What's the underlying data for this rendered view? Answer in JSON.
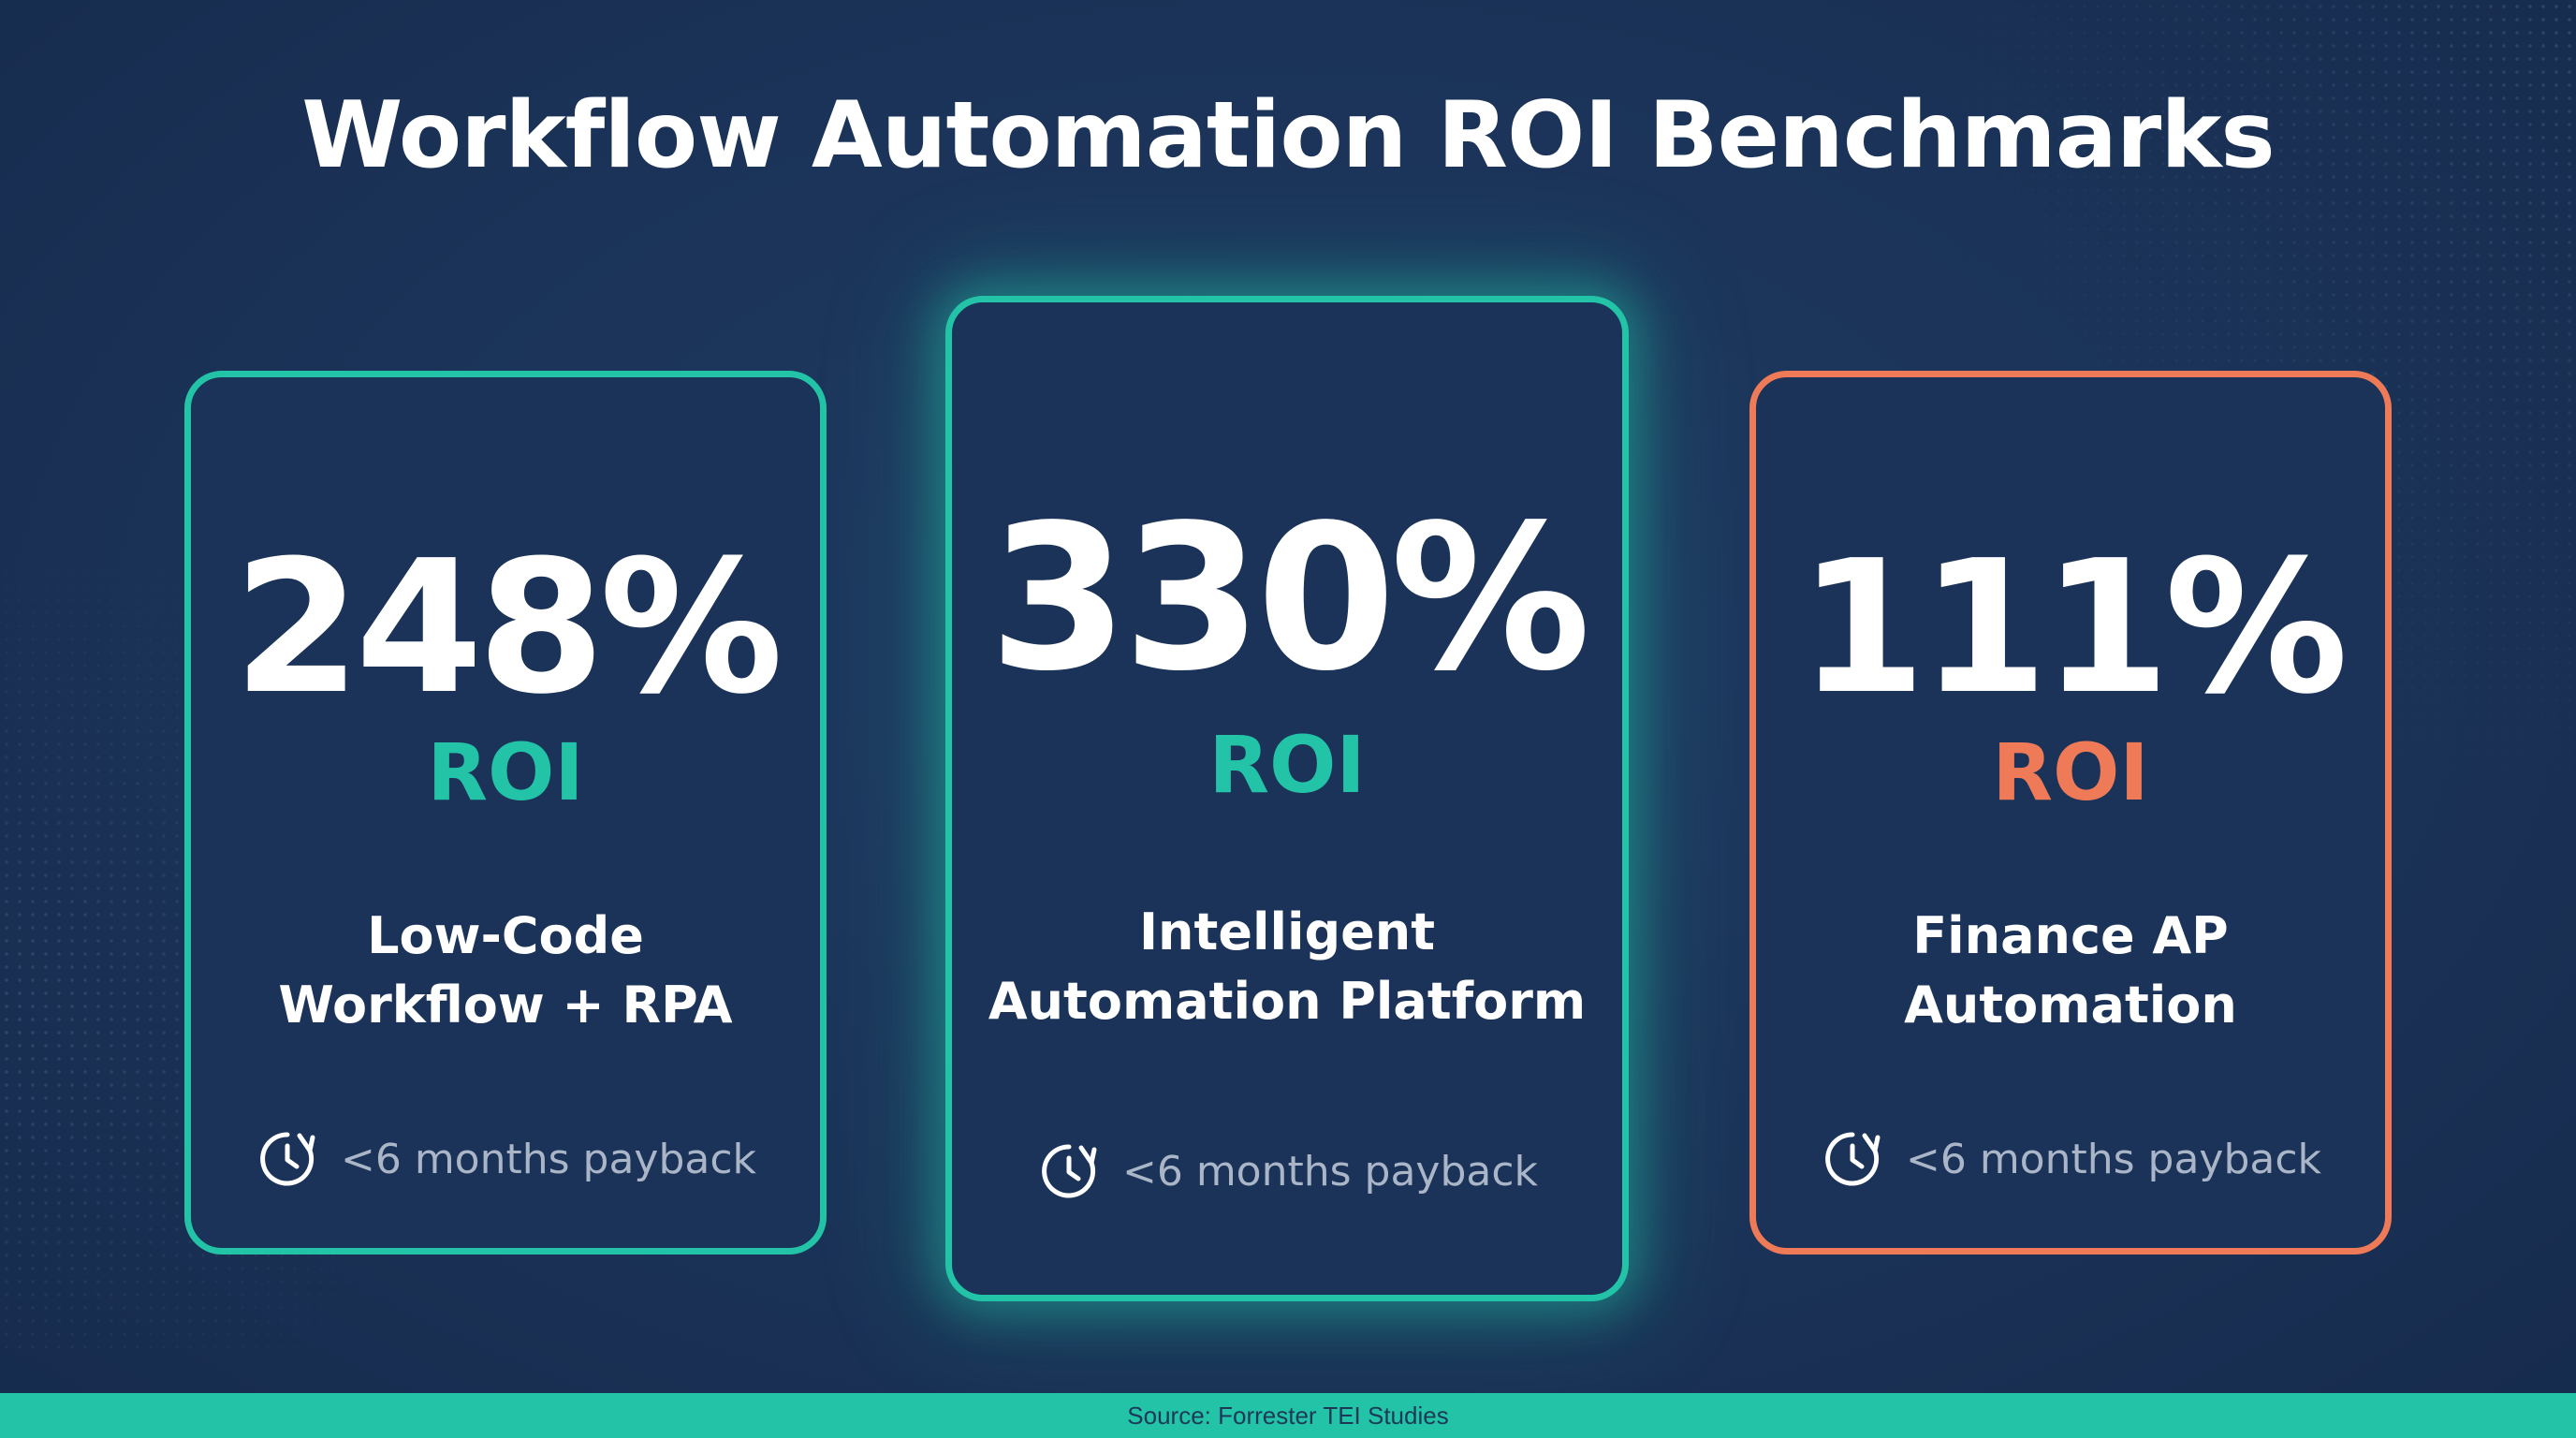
{
  "title": "Workflow Automation ROI Benchmarks",
  "colors": {
    "background": "#1b3358",
    "teal_accent": "#22c3a6",
    "coral_accent": "#ef7a57",
    "text_primary": "#ffffff",
    "text_muted": "#aab6c8"
  },
  "cards": [
    {
      "value": "248%",
      "label": "ROI",
      "name_line1": "Low-Code",
      "name_line2": "Workflow + RPA",
      "icon": "clock-refresh-icon",
      "payback": "<6 months payback",
      "accent": "#22c3a6"
    },
    {
      "value": "330%",
      "label": "ROI",
      "name_line1": "Intelligent",
      "name_line2": "Automation Platform",
      "icon": "clock-refresh-icon",
      "payback": "<6 months payback",
      "accent": "#22c3a6",
      "highlighted": true
    },
    {
      "value": "111%",
      "label": "ROI",
      "name_line1": "Finance AP",
      "name_line2": "Automation",
      "icon": "clock-refresh-icon",
      "payback": "<6 months payback",
      "accent": "#ef7a57"
    }
  ],
  "footer": {
    "source": "Source: Forrester TEI Studies"
  }
}
